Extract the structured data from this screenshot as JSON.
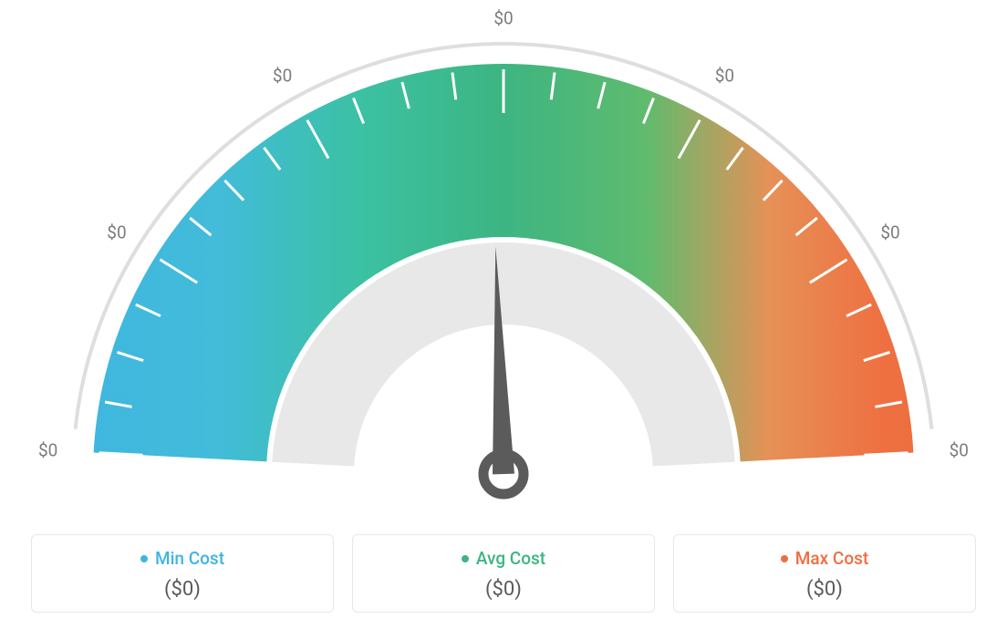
{
  "gauge": {
    "type": "gauge",
    "background_color": "#ffffff",
    "outer_ring_color": "#dedede",
    "outer_ring_width": 4,
    "inner_donut_color": "#e8e8e8",
    "inner_donut_width": 90,
    "tick_color": "#ffffff",
    "tick_width": 3,
    "tick_length": 30,
    "major_tick_length": 48,
    "needle_color": "#5b5b5b",
    "needle_angle_deg": 88,
    "scale_labels": [
      "$0",
      "$0",
      "$0",
      "$0",
      "$0",
      "$0",
      "$0"
    ],
    "scale_label_color": "#7c7c7c",
    "scale_label_fontsize": 19,
    "band": {
      "outer_radius": 450,
      "inner_radius": 260,
      "gradient_stops": [
        {
          "pct": 0,
          "color": "#3fb4e3"
        },
        {
          "pct": 20,
          "color": "#42bcd9"
        },
        {
          "pct": 35,
          "color": "#3bc1a3"
        },
        {
          "pct": 50,
          "color": "#3db582"
        },
        {
          "pct": 65,
          "color": "#5fbb6e"
        },
        {
          "pct": 78,
          "color": "#e69157"
        },
        {
          "pct": 90,
          "color": "#ee7041"
        },
        {
          "pct": 100,
          "color": "#f06a3b"
        }
      ]
    }
  },
  "legend": {
    "min": {
      "label": "Min Cost",
      "value": "($0)",
      "dot_color": "#3fb4e3",
      "text_color": "#3fb4e3"
    },
    "avg": {
      "label": "Avg Cost",
      "value": "($0)",
      "dot_color": "#3db582",
      "text_color": "#3db582"
    },
    "max": {
      "label": "Max Cost",
      "value": "($0)",
      "dot_color": "#ef6e3f",
      "text_color": "#ef6e3f"
    },
    "value_color": "#5a5a5a",
    "border_color": "#e7e7e7",
    "value_fontsize": 22,
    "label_fontsize": 19
  }
}
